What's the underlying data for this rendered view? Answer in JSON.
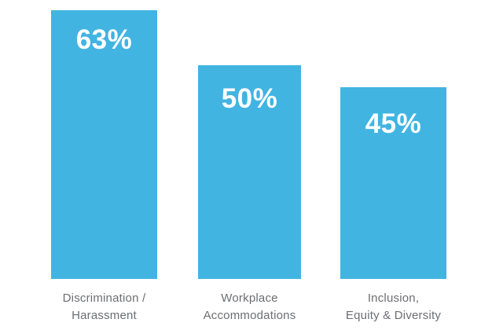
{
  "chart_data": {
    "type": "bar",
    "title": "",
    "xlabel": "",
    "ylabel": "",
    "categories": [
      "Discrimination / Harassment",
      "Workplace Accommodations",
      "Inclusion, Equity & Diversity"
    ],
    "category_lines": [
      [
        "Discrimination /",
        "Harassment"
      ],
      [
        "Workplace",
        "Accommodations"
      ],
      [
        "Inclusion,",
        "Equity & Diversity"
      ]
    ],
    "values": [
      63,
      50,
      45
    ],
    "value_labels": [
      "63%",
      "50%",
      "45%"
    ],
    "unit": "%",
    "ylim": [
      0,
      65
    ],
    "axes_visible": false,
    "gridlines": false,
    "legend": false,
    "colors": {
      "bar": "#41b4e2",
      "value_label": "#ffffff",
      "category_label": "#6d6e71",
      "background": "#ffffff"
    }
  }
}
